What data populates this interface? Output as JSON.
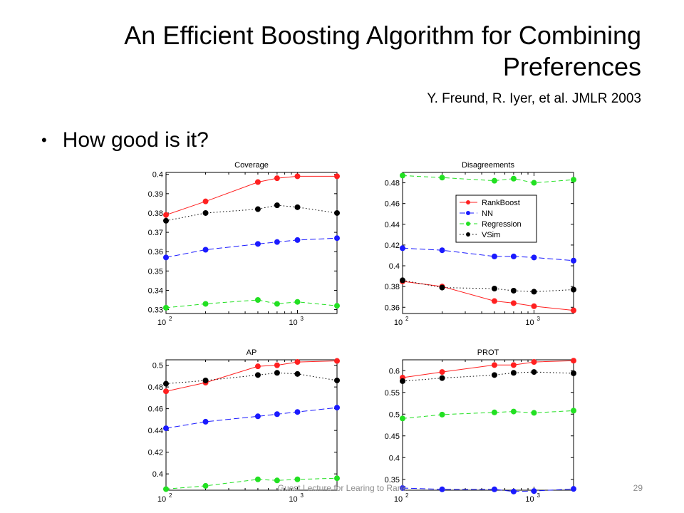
{
  "slide": {
    "title": "An Efficient Boosting Algorithm for Combining Preferences",
    "subtitle": "Y. Freund, R. Iyer, et al. JMLR 2003",
    "bullet": "How good is it?",
    "footer": "Guest Lecture for Learing to Rank",
    "page_number": "29"
  },
  "colors": {
    "RankBoost": "#ff2020",
    "NN": "#1a1aff",
    "Regression": "#22e022",
    "VSim": "#000000"
  },
  "chart_data": [
    {
      "type": "line",
      "title": "Coverage",
      "xscale": "log",
      "xlim": [
        100,
        2000
      ],
      "ylim": [
        0.328,
        0.401
      ],
      "yticks": [
        0.33,
        0.34,
        0.35,
        0.36,
        0.37,
        0.38,
        0.39,
        0.4
      ],
      "ytick_labels": [
        "0.33",
        "0.34",
        "0.35",
        "0.36",
        "0.37",
        "0.38",
        "0.39",
        "0.4"
      ],
      "xticks": [
        100,
        1000
      ],
      "xtick_labels": [
        "10",
        "10"
      ],
      "xtick_exponents": [
        "2",
        "3"
      ],
      "x": [
        100,
        200,
        500,
        700,
        1000,
        2000
      ],
      "series": [
        {
          "name": "RankBoost",
          "values": [
            0.379,
            0.386,
            0.396,
            0.398,
            0.399,
            0.399
          ]
        },
        {
          "name": "NN",
          "values": [
            0.357,
            0.361,
            0.364,
            0.365,
            0.366,
            0.367
          ]
        },
        {
          "name": "Regression",
          "values": [
            0.331,
            0.333,
            0.335,
            0.333,
            0.334,
            0.332
          ]
        },
        {
          "name": "VSim",
          "values": [
            0.376,
            0.38,
            0.382,
            0.384,
            0.383,
            0.38
          ]
        }
      ],
      "legend": false
    },
    {
      "type": "line",
      "title": "Disagreements",
      "xscale": "log",
      "xlim": [
        100,
        2000
      ],
      "ylim": [
        0.354,
        0.49
      ],
      "yticks": [
        0.36,
        0.38,
        0.4,
        0.42,
        0.44,
        0.46,
        0.48
      ],
      "ytick_labels": [
        "0.36",
        "0.38",
        "0.4",
        "0.42",
        "0.44",
        "0.46",
        "0.48"
      ],
      "xticks": [
        100,
        1000
      ],
      "xtick_labels": [
        "10",
        "10"
      ],
      "xtick_exponents": [
        "2",
        "3"
      ],
      "x": [
        100,
        200,
        500,
        700,
        1000,
        2000
      ],
      "series": [
        {
          "name": "RankBoost",
          "values": [
            0.385,
            0.38,
            0.366,
            0.364,
            0.361,
            0.357
          ]
        },
        {
          "name": "NN",
          "values": [
            0.417,
            0.415,
            0.409,
            0.409,
            0.408,
            0.405
          ]
        },
        {
          "name": "Regression",
          "values": [
            0.487,
            0.485,
            0.482,
            0.484,
            0.48,
            0.483
          ]
        },
        {
          "name": "VSim",
          "values": [
            0.386,
            0.379,
            0.378,
            0.376,
            0.375,
            0.377
          ]
        }
      ],
      "legend": true,
      "legend_position": "top-right"
    },
    {
      "type": "line",
      "title": "AP",
      "xscale": "log",
      "xlim": [
        100,
        2000
      ],
      "ylim": [
        0.385,
        0.505
      ],
      "yticks": [
        0.4,
        0.42,
        0.44,
        0.46,
        0.48,
        0.5
      ],
      "ytick_labels": [
        "0.4",
        "0.42",
        "0.44",
        "0.46",
        "0.48",
        "0.5"
      ],
      "xticks": [
        100,
        1000
      ],
      "xtick_labels": [
        "10",
        "10"
      ],
      "xtick_exponents": [
        "2",
        "3"
      ],
      "x": [
        100,
        200,
        500,
        700,
        1000,
        2000
      ],
      "series": [
        {
          "name": "RankBoost",
          "values": [
            0.476,
            0.484,
            0.499,
            0.5,
            0.503,
            0.504
          ]
        },
        {
          "name": "NN",
          "values": [
            0.442,
            0.448,
            0.453,
            0.455,
            0.457,
            0.461
          ]
        },
        {
          "name": "Regression",
          "values": [
            0.386,
            0.389,
            0.395,
            0.394,
            0.395,
            0.396
          ]
        },
        {
          "name": "VSim",
          "values": [
            0.483,
            0.486,
            0.491,
            0.493,
            0.492,
            0.486
          ]
        }
      ],
      "legend": false
    },
    {
      "type": "line",
      "title": "PROT",
      "xscale": "log",
      "xlim": [
        100,
        2000
      ],
      "ylim": [
        0.325,
        0.625
      ],
      "yticks": [
        0.35,
        0.4,
        0.45,
        0.5,
        0.55,
        0.6
      ],
      "ytick_labels": [
        "0.35",
        "0.4",
        "0.45",
        "0.5",
        "0.55",
        "0.6"
      ],
      "xticks": [
        100,
        1000
      ],
      "xtick_labels": [
        "10",
        "10"
      ],
      "xtick_exponents": [
        "2",
        "3"
      ],
      "x": [
        100,
        200,
        500,
        700,
        1000,
        2000
      ],
      "series": [
        {
          "name": "RankBoost",
          "values": [
            0.584,
            0.597,
            0.613,
            0.613,
            0.62,
            0.623
          ]
        },
        {
          "name": "NN",
          "values": [
            0.33,
            0.327,
            0.327,
            0.322,
            0.323,
            0.328
          ]
        },
        {
          "name": "Regression",
          "values": [
            0.49,
            0.499,
            0.504,
            0.506,
            0.503,
            0.508
          ]
        },
        {
          "name": "VSim",
          "values": [
            0.576,
            0.583,
            0.59,
            0.595,
            0.597,
            0.594
          ]
        }
      ],
      "legend": false
    }
  ]
}
